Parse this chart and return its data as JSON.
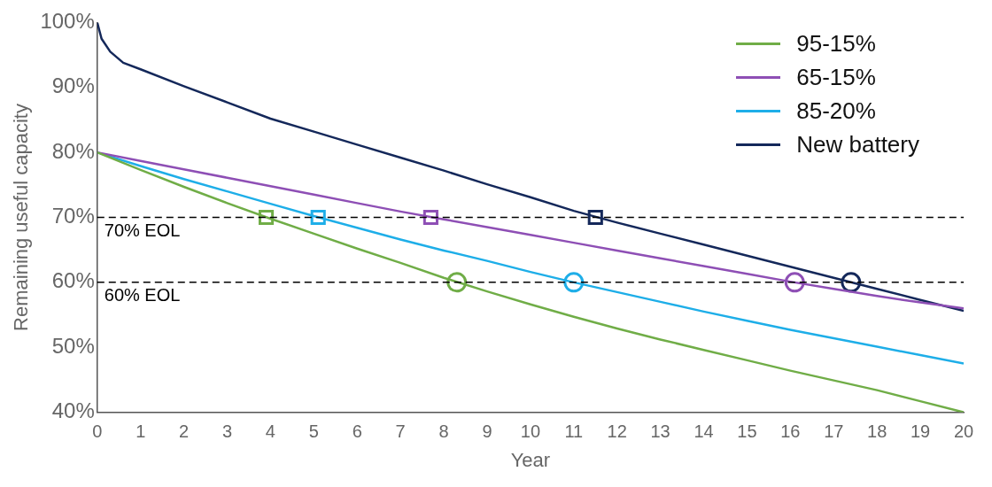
{
  "chart_data": {
    "type": "line",
    "xlabel": "Year",
    "ylabel": "Remaining useful capacity",
    "xlim": [
      0,
      20
    ],
    "xticks": [
      0,
      1,
      2,
      3,
      4,
      5,
      6,
      7,
      8,
      9,
      10,
      11,
      12,
      13,
      14,
      15,
      16,
      17,
      18,
      19,
      20
    ],
    "ylim": [
      40,
      100
    ],
    "yticks": [
      {
        "value": 40,
        "label": "40%"
      },
      {
        "value": 50,
        "label": "50%"
      },
      {
        "value": 60,
        "label": "60%"
      },
      {
        "value": 70,
        "label": "70%"
      },
      {
        "value": 80,
        "label": "80%"
      },
      {
        "value": 90,
        "label": "90%"
      },
      {
        "value": 100,
        "label": "100%"
      }
    ],
    "grid": false,
    "legend": "top right",
    "marker": "none",
    "line_style": "solid",
    "series": [
      {
        "name": "95-15%",
        "color": "#70ad47",
        "x": [
          0,
          1,
          2,
          3,
          4,
          5,
          6,
          7,
          8,
          9,
          10,
          11,
          12,
          13,
          14,
          15,
          16,
          17,
          18,
          19,
          20
        ],
        "values": [
          80,
          77.3,
          74.7,
          72.2,
          69.8,
          67.5,
          65.2,
          63,
          60.7,
          58.6,
          56.6,
          54.7,
          52.9,
          51.2,
          49.6,
          48,
          46.4,
          44.9,
          43.4,
          41.7,
          40
        ]
      },
      {
        "name": "65-15%",
        "color": "#8e4fb5",
        "x": [
          0,
          1,
          2,
          3,
          4,
          5,
          6,
          7,
          8,
          9,
          10,
          11,
          12,
          13,
          14,
          15,
          16,
          17,
          18,
          19,
          20
        ],
        "values": [
          80,
          78.7,
          77.4,
          76.1,
          74.8,
          73.5,
          72.2,
          70.9,
          69.7,
          68.5,
          67.3,
          66.1,
          64.9,
          63.7,
          62.5,
          61.3,
          60.1,
          59,
          57.9,
          56.9,
          56
        ]
      },
      {
        "name": "85-20%",
        "color": "#1eaee8",
        "x": [
          0,
          1,
          2,
          3,
          4,
          5,
          6,
          7,
          8,
          9,
          10,
          11,
          12,
          13,
          14,
          15,
          16,
          17,
          18,
          19,
          20
        ],
        "values": [
          80,
          77.9,
          75.9,
          74,
          72.1,
          70.2,
          68.4,
          66.6,
          64.9,
          63.3,
          61.6,
          60,
          58.5,
          57,
          55.5,
          54.1,
          52.7,
          51.4,
          50.1,
          48.8,
          47.5
        ]
      },
      {
        "name": "New battery",
        "color": "#14285a",
        "x": [
          0,
          0.1,
          0.3,
          0.6,
          1,
          2,
          3,
          4,
          5,
          6,
          7,
          8,
          9,
          10,
          11,
          12,
          13,
          14,
          15,
          16,
          17,
          18,
          19,
          20
        ],
        "values": [
          100,
          97.5,
          95.5,
          93.8,
          92.8,
          90.2,
          87.7,
          85.2,
          83.2,
          81.2,
          79.2,
          77.2,
          75.1,
          73.1,
          71,
          69.2,
          67.5,
          65.8,
          64.1,
          62.4,
          60.7,
          59,
          57.3,
          55.6
        ]
      },
      {
        "type": "scatter",
        "marker": "square",
        "x": [
          3.9,
          5.1,
          7.7,
          11.5
        ],
        "values": [
          70,
          70,
          70,
          70
        ],
        "colors": [
          "#70ad47",
          "#1eaee8",
          "#8e4fb5",
          "#14285a"
        ]
      },
      {
        "type": "scatter",
        "marker": "circle",
        "x": [
          8.3,
          11,
          16.1,
          17.4
        ],
        "values": [
          60,
          60,
          60,
          60
        ],
        "colors": [
          "#70ad47",
          "#1eaee8",
          "#8e4fb5",
          "#14285a"
        ]
      }
    ],
    "ref_lines": [
      {
        "axis": "y",
        "value": 70,
        "label": "70% EOL",
        "color": "#000000",
        "line_style": "dashed"
      },
      {
        "axis": "y",
        "value": 60,
        "label": "60% EOL",
        "color": "#000000",
        "line_style": "dashed"
      }
    ]
  }
}
